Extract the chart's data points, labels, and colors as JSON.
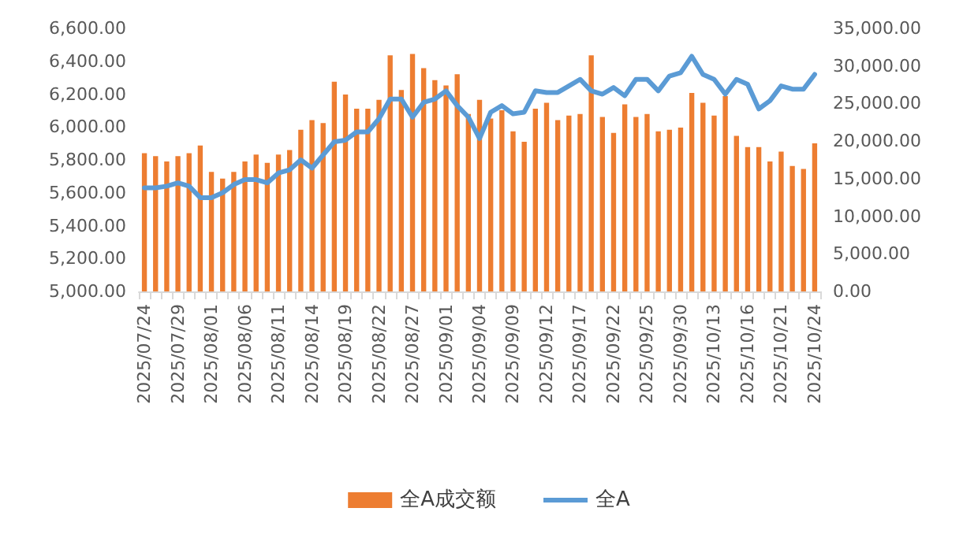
{
  "chart_data": {
    "type": "bar",
    "legend": "bottom",
    "grid": false,
    "marker": "none",
    "categories": [
      "2025/07/24",
      null,
      null,
      "2025/07/29",
      null,
      null,
      "2025/08/01",
      null,
      null,
      "2025/08/06",
      null,
      null,
      "2025/08/11",
      null,
      null,
      "2025/08/14",
      null,
      null,
      "2025/08/19",
      null,
      null,
      "2025/08/22",
      null,
      null,
      "2025/08/27",
      null,
      null,
      "2025/09/01",
      null,
      null,
      "2025/09/04",
      null,
      null,
      "2025/09/09",
      null,
      null,
      "2025/09/12",
      null,
      null,
      "2025/09/17",
      null,
      null,
      "2025/09/22",
      null,
      null,
      "2025/09/25",
      null,
      null,
      "2025/09/30",
      null,
      null,
      "2025/10/13",
      null,
      null,
      "2025/10/16",
      null,
      null,
      "2025/10/21",
      null,
      null,
      "2025/10/24"
    ],
    "ylim": [
      5000,
      6600
    ],
    "yticks": [
      {
        "value": 5000,
        "label": "5,000.00"
      },
      {
        "value": 5200,
        "label": "5,200.00"
      },
      {
        "value": 5400,
        "label": "5,400.00"
      },
      {
        "value": 5600,
        "label": "5,600.00"
      },
      {
        "value": 5800,
        "label": "5,800.00"
      },
      {
        "value": 6000,
        "label": "6,000.00"
      },
      {
        "value": 6200,
        "label": "6,200.00"
      },
      {
        "value": 6400,
        "label": "6,400.00"
      },
      {
        "value": 6600,
        "label": "6,600.00"
      }
    ],
    "y2lim": [
      0,
      35000
    ],
    "y2ticks": [
      {
        "value": 0,
        "label": "0.00"
      },
      {
        "value": 5000,
        "label": "5,000.00"
      },
      {
        "value": 10000,
        "label": "10,000.00"
      },
      {
        "value": 15000,
        "label": "15,000.00"
      },
      {
        "value": 20000,
        "label": "20,000.00"
      },
      {
        "value": 25000,
        "label": "25,000.00"
      },
      {
        "value": 30000,
        "label": "30,000.00"
      },
      {
        "value": 35000,
        "label": "35,000.00"
      }
    ],
    "series": [
      {
        "name": "全A成交额",
        "axis": "y2",
        "color": "#ed7d31",
        "values": [
          18400,
          18000,
          17300,
          18000,
          18400,
          19400,
          15900,
          15000,
          15900,
          17300,
          18200,
          17100,
          18200,
          18800,
          21500,
          22800,
          22400,
          27900,
          26200,
          24300,
          24300,
          25500,
          31400,
          26800,
          31600,
          29700,
          28100,
          27400,
          28900,
          23600,
          25500,
          23000,
          24100,
          21300,
          19900,
          24300,
          25100,
          22800,
          23400,
          23600,
          31400,
          23200,
          21100,
          24900,
          23200,
          23600,
          21300,
          21500,
          21800,
          26400,
          25100,
          23400,
          26000,
          20700,
          19200,
          19200,
          17300,
          18600,
          16700,
          16300,
          19700
        ]
      },
      {
        "name": "全A",
        "type": "line",
        "color": "#5b9bd5",
        "values": [
          5630,
          5630,
          5640,
          5660,
          5640,
          5570,
          5570,
          5600,
          5650,
          5680,
          5680,
          5660,
          5720,
          5740,
          5800,
          5750,
          5830,
          5910,
          5920,
          5970,
          5970,
          6050,
          6170,
          6170,
          6060,
          6150,
          6170,
          6220,
          6130,
          6060,
          5930,
          6090,
          6130,
          6080,
          6090,
          6220,
          6210,
          6210,
          6250,
          6290,
          6220,
          6200,
          6240,
          6190,
          6290,
          6290,
          6220,
          6310,
          6330,
          6430,
          6320,
          6290,
          6200,
          6290,
          6260,
          6110,
          6160,
          6250,
          6230,
          6230,
          6320
        ]
      }
    ]
  }
}
